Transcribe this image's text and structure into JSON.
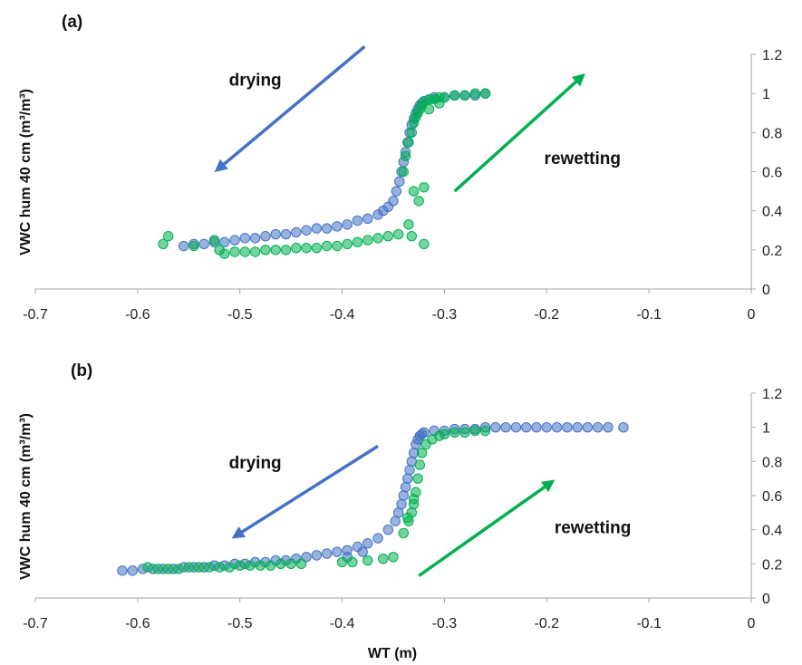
{
  "chart_data": [
    {
      "type": "scatter",
      "panel_label": "(a)",
      "ylabel": "VWC hum 40 cm (m³/m³)",
      "xlabel": "",
      "xlim": [
        -0.7,
        0
      ],
      "ylim": [
        0,
        1.2
      ],
      "x_ticks": [
        "-0.7",
        "-0.6",
        "-0.5",
        "-0.4",
        "-0.3",
        "-0.2",
        "-0.1",
        "0"
      ],
      "y_ticks": [
        "0",
        "0.2",
        "0.4",
        "0.6",
        "0.8",
        "1",
        "1.2"
      ],
      "y_axis_side": "right",
      "grid": false,
      "colors": {
        "drying": "#4472c4",
        "rewetting": "#00b050"
      },
      "annotations": [
        {
          "text": "drying",
          "x": -0.485,
          "y": 1.04
        },
        {
          "text": "rewetting",
          "x": -0.165,
          "y": 0.64
        }
      ],
      "arrows": [
        {
          "series": "drying",
          "from": [
            -0.378,
            1.24
          ],
          "to": [
            -0.522,
            0.61
          ]
        },
        {
          "series": "rewetting",
          "from": [
            -0.29,
            0.5
          ],
          "to": [
            -0.165,
            1.09
          ]
        }
      ],
      "series": [
        {
          "key": "drying",
          "points": [
            [
              -0.555,
              0.22
            ],
            [
              -0.545,
              0.23
            ],
            [
              -0.535,
              0.23
            ],
            [
              -0.525,
              0.24
            ],
            [
              -0.515,
              0.24
            ],
            [
              -0.505,
              0.25
            ],
            [
              -0.495,
              0.26
            ],
            [
              -0.485,
              0.26
            ],
            [
              -0.475,
              0.27
            ],
            [
              -0.465,
              0.28
            ],
            [
              -0.455,
              0.28
            ],
            [
              -0.445,
              0.29
            ],
            [
              -0.435,
              0.3
            ],
            [
              -0.425,
              0.31
            ],
            [
              -0.415,
              0.31
            ],
            [
              -0.405,
              0.32
            ],
            [
              -0.395,
              0.33
            ],
            [
              -0.385,
              0.35
            ],
            [
              -0.375,
              0.36
            ],
            [
              -0.365,
              0.38
            ],
            [
              -0.36,
              0.4
            ],
            [
              -0.355,
              0.42
            ],
            [
              -0.35,
              0.45
            ],
            [
              -0.347,
              0.5
            ],
            [
              -0.344,
              0.55
            ],
            [
              -0.342,
              0.6
            ],
            [
              -0.34,
              0.65
            ],
            [
              -0.338,
              0.7
            ],
            [
              -0.336,
              0.75
            ],
            [
              -0.334,
              0.8
            ],
            [
              -0.332,
              0.84
            ],
            [
              -0.33,
              0.87
            ],
            [
              -0.328,
              0.9
            ],
            [
              -0.326,
              0.92
            ],
            [
              -0.324,
              0.94
            ],
            [
              -0.322,
              0.95
            ],
            [
              -0.32,
              0.96
            ],
            [
              -0.315,
              0.97
            ],
            [
              -0.31,
              0.98
            ],
            [
              -0.3,
              0.98
            ],
            [
              -0.29,
              0.99
            ],
            [
              -0.28,
              0.99
            ],
            [
              -0.27,
              0.99
            ],
            [
              -0.26,
              1.0
            ]
          ]
        },
        {
          "key": "rewetting",
          "points": [
            [
              -0.575,
              0.23
            ],
            [
              -0.57,
              0.27
            ],
            [
              -0.545,
              0.22
            ],
            [
              -0.525,
              0.25
            ],
            [
              -0.52,
              0.2
            ],
            [
              -0.515,
              0.18
            ],
            [
              -0.505,
              0.19
            ],
            [
              -0.495,
              0.19
            ],
            [
              -0.485,
              0.19
            ],
            [
              -0.475,
              0.2
            ],
            [
              -0.465,
              0.2
            ],
            [
              -0.455,
              0.2
            ],
            [
              -0.445,
              0.21
            ],
            [
              -0.435,
              0.21
            ],
            [
              -0.425,
              0.21
            ],
            [
              -0.415,
              0.22
            ],
            [
              -0.405,
              0.22
            ],
            [
              -0.395,
              0.23
            ],
            [
              -0.385,
              0.24
            ],
            [
              -0.375,
              0.25
            ],
            [
              -0.365,
              0.26
            ],
            [
              -0.355,
              0.27
            ],
            [
              -0.345,
              0.28
            ],
            [
              -0.335,
              0.33
            ],
            [
              -0.332,
              0.27
            ],
            [
              -0.33,
              0.5
            ],
            [
              -0.325,
              0.45
            ],
            [
              -0.32,
              0.52
            ],
            [
              -0.32,
              0.23
            ],
            [
              -0.34,
              0.6
            ],
            [
              -0.338,
              0.68
            ],
            [
              -0.335,
              0.75
            ],
            [
              -0.332,
              0.8
            ],
            [
              -0.33,
              0.85
            ],
            [
              -0.328,
              0.88
            ],
            [
              -0.326,
              0.9
            ],
            [
              -0.324,
              0.92
            ],
            [
              -0.322,
              0.94
            ],
            [
              -0.32,
              0.96
            ],
            [
              -0.315,
              0.97
            ],
            [
              -0.31,
              0.97
            ],
            [
              -0.305,
              0.98
            ],
            [
              -0.3,
              0.98
            ],
            [
              -0.29,
              0.99
            ],
            [
              -0.28,
              0.99
            ],
            [
              -0.27,
              1.0
            ],
            [
              -0.26,
              1.0
            ],
            [
              -0.315,
              0.92
            ],
            [
              -0.305,
              0.95
            ]
          ]
        }
      ]
    },
    {
      "type": "scatter",
      "panel_label": "(b)",
      "ylabel": "VWC hum 40 cm (m³/m³)",
      "xlabel": "WT (m)",
      "xlim": [
        -0.7,
        0
      ],
      "ylim": [
        0,
        1.2
      ],
      "x_ticks": [
        "-0.7",
        "-0.6",
        "-0.5",
        "-0.4",
        "-0.3",
        "-0.2",
        "-0.1",
        "0"
      ],
      "y_ticks": [
        "0",
        "0.2",
        "0.4",
        "0.6",
        "0.8",
        "1",
        "1.2"
      ],
      "y_axis_side": "right",
      "grid": false,
      "colors": {
        "drying": "#4472c4",
        "rewetting": "#00b050"
      },
      "annotations": [
        {
          "text": "drying",
          "x": -0.485,
          "y": 0.76
        },
        {
          "text": "rewetting",
          "x": -0.155,
          "y": 0.38
        }
      ],
      "arrows": [
        {
          "series": "drying",
          "from": [
            -0.365,
            0.89
          ],
          "to": [
            -0.505,
            0.36
          ]
        },
        {
          "series": "rewetting",
          "from": [
            -0.325,
            0.13
          ],
          "to": [
            -0.195,
            0.68
          ]
        }
      ],
      "series": [
        {
          "key": "drying",
          "points": [
            [
              -0.615,
              0.16
            ],
            [
              -0.605,
              0.16
            ],
            [
              -0.595,
              0.17
            ],
            [
              -0.585,
              0.17
            ],
            [
              -0.575,
              0.17
            ],
            [
              -0.565,
              0.17
            ],
            [
              -0.555,
              0.18
            ],
            [
              -0.545,
              0.18
            ],
            [
              -0.535,
              0.18
            ],
            [
              -0.525,
              0.19
            ],
            [
              -0.515,
              0.19
            ],
            [
              -0.505,
              0.2
            ],
            [
              -0.495,
              0.2
            ],
            [
              -0.485,
              0.21
            ],
            [
              -0.475,
              0.21
            ],
            [
              -0.465,
              0.22
            ],
            [
              -0.455,
              0.22
            ],
            [
              -0.445,
              0.23
            ],
            [
              -0.435,
              0.24
            ],
            [
              -0.425,
              0.25
            ],
            [
              -0.415,
              0.26
            ],
            [
              -0.405,
              0.27
            ],
            [
              -0.395,
              0.28
            ],
            [
              -0.385,
              0.3
            ],
            [
              -0.375,
              0.32
            ],
            [
              -0.365,
              0.35
            ],
            [
              -0.355,
              0.4
            ],
            [
              -0.348,
              0.45
            ],
            [
              -0.345,
              0.5
            ],
            [
              -0.342,
              0.55
            ],
            [
              -0.34,
              0.6
            ],
            [
              -0.338,
              0.65
            ],
            [
              -0.336,
              0.7
            ],
            [
              -0.334,
              0.75
            ],
            [
              -0.332,
              0.8
            ],
            [
              -0.33,
              0.85
            ],
            [
              -0.328,
              0.9
            ],
            [
              -0.326,
              0.93
            ],
            [
              -0.324,
              0.95
            ],
            [
              -0.322,
              0.96
            ],
            [
              -0.32,
              0.97
            ],
            [
              -0.31,
              0.98
            ],
            [
              -0.3,
              0.98
            ],
            [
              -0.29,
              0.99
            ],
            [
              -0.28,
              0.99
            ],
            [
              -0.27,
              0.99
            ],
            [
              -0.26,
              1.0
            ],
            [
              -0.25,
              1.0
            ],
            [
              -0.24,
              1.0
            ],
            [
              -0.23,
              1.0
            ],
            [
              -0.22,
              1.0
            ],
            [
              -0.21,
              1.0
            ],
            [
              -0.2,
              1.0
            ],
            [
              -0.19,
              1.0
            ],
            [
              -0.18,
              1.0
            ],
            [
              -0.17,
              1.0
            ],
            [
              -0.16,
              1.0
            ],
            [
              -0.15,
              1.0
            ],
            [
              -0.14,
              1.0
            ],
            [
              -0.125,
              1.0
            ],
            [
              -0.395,
              0.24
            ],
            [
              -0.38,
              0.27
            ]
          ]
        },
        {
          "key": "rewetting",
          "points": [
            [
              -0.59,
              0.18
            ],
            [
              -0.58,
              0.17
            ],
            [
              -0.57,
              0.17
            ],
            [
              -0.56,
              0.17
            ],
            [
              -0.55,
              0.18
            ],
            [
              -0.54,
              0.18
            ],
            [
              -0.53,
              0.18
            ],
            [
              -0.52,
              0.18
            ],
            [
              -0.51,
              0.18
            ],
            [
              -0.5,
              0.19
            ],
            [
              -0.49,
              0.19
            ],
            [
              -0.48,
              0.19
            ],
            [
              -0.47,
              0.19
            ],
            [
              -0.46,
              0.2
            ],
            [
              -0.45,
              0.2
            ],
            [
              -0.44,
              0.2
            ],
            [
              -0.4,
              0.21
            ],
            [
              -0.39,
              0.21
            ],
            [
              -0.375,
              0.22
            ],
            [
              -0.36,
              0.23
            ],
            [
              -0.35,
              0.24
            ],
            [
              -0.34,
              0.38
            ],
            [
              -0.335,
              0.45
            ],
            [
              -0.332,
              0.5
            ],
            [
              -0.33,
              0.55
            ],
            [
              -0.328,
              0.62
            ],
            [
              -0.326,
              0.7
            ],
            [
              -0.324,
              0.78
            ],
            [
              -0.322,
              0.85
            ],
            [
              -0.318,
              0.9
            ],
            [
              -0.312,
              0.93
            ],
            [
              -0.305,
              0.95
            ],
            [
              -0.3,
              0.96
            ],
            [
              -0.29,
              0.97
            ],
            [
              -0.28,
              0.97
            ],
            [
              -0.27,
              0.98
            ],
            [
              -0.26,
              0.98
            ],
            [
              -0.33,
              0.58
            ],
            [
              -0.336,
              0.47
            ]
          ]
        }
      ]
    }
  ]
}
